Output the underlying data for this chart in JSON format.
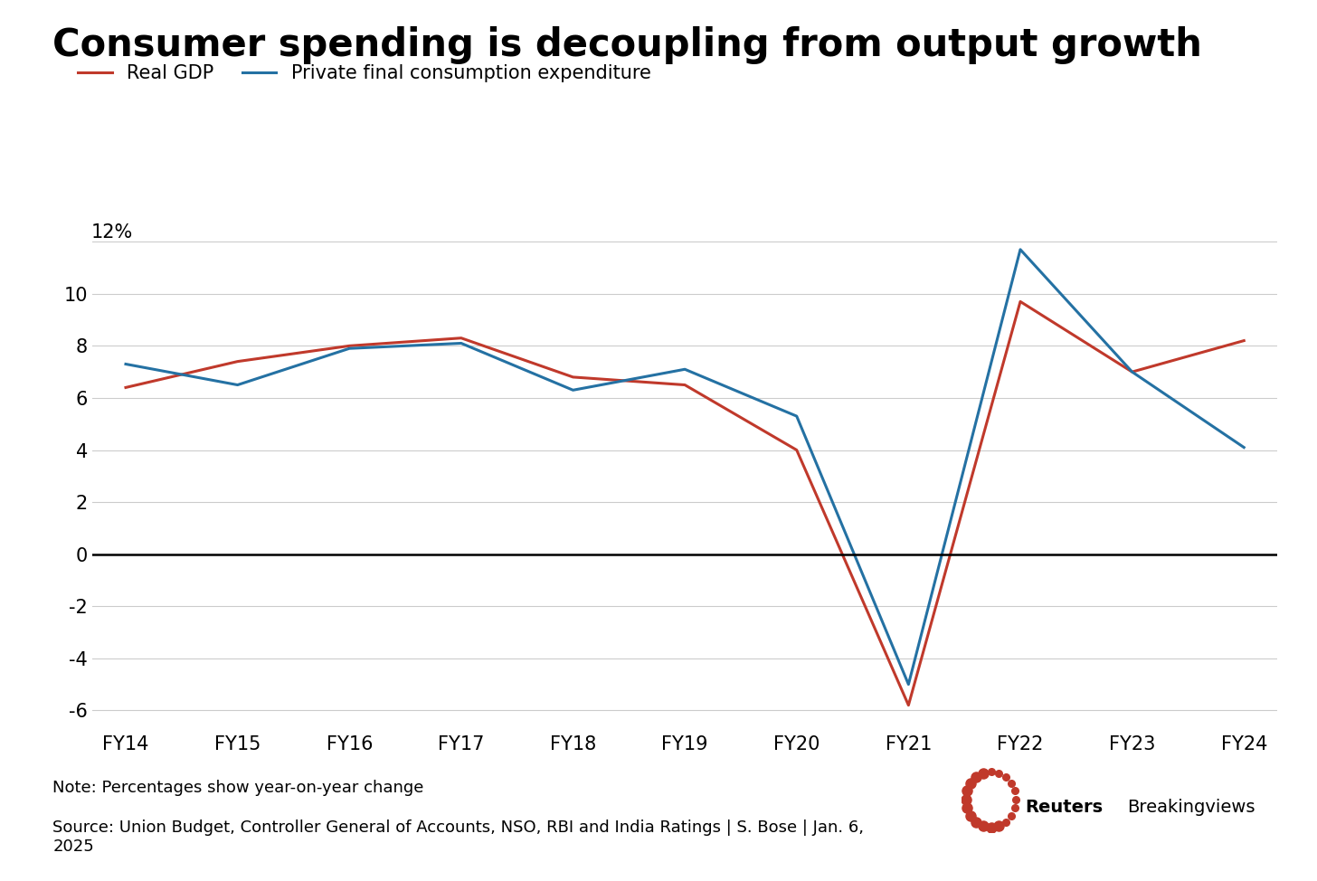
{
  "title": "Consumer spending is decoupling from output growth",
  "categories": [
    "FY14",
    "FY15",
    "FY16",
    "FY17",
    "FY18",
    "FY19",
    "FY20",
    "FY21",
    "FY22",
    "FY23",
    "FY24"
  ],
  "real_gdp": [
    6.4,
    7.4,
    8.0,
    8.3,
    6.8,
    6.5,
    4.0,
    -5.8,
    9.7,
    7.0,
    8.2
  ],
  "pfce": [
    7.3,
    6.5,
    7.9,
    8.1,
    6.3,
    7.1,
    5.3,
    -5.0,
    11.7,
    7.0,
    4.1
  ],
  "gdp_color": "#c0392b",
  "pfce_color": "#2471a3",
  "line_width": 2.2,
  "ylim": [
    -6.8,
    13.5
  ],
  "yticks": [
    -6,
    -4,
    -2,
    0,
    2,
    4,
    6,
    8,
    10
  ],
  "ytick_labels": [
    "-6",
    "-4",
    "-2",
    "0",
    "2",
    "4",
    "6",
    "8",
    "10"
  ],
  "ytop_label": "12%",
  "background_color": "#ffffff",
  "grid_color": "#cccccc",
  "legend_gdp": "Real GDP",
  "legend_pfce": "Private final consumption expenditure",
  "note": "Note: Percentages show year-on-year change",
  "source": "Source: Union Budget, Controller General of Accounts, NSO, RBI and India Ratings | S. Bose | Jan. 6,\n2025",
  "title_fontsize": 30,
  "axis_fontsize": 15,
  "legend_fontsize": 15,
  "note_fontsize": 13,
  "logo_color": "#c0392b"
}
